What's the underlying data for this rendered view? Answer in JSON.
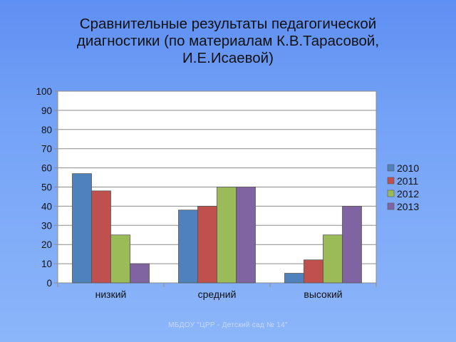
{
  "slide": {
    "title_lines": [
      "Сравнительные результаты педагогической",
      "диагностики (по материалам К.В.Тарасовой,",
      "И.Е.Исаевой)"
    ],
    "footer": "МБДОУ \"ЦРР - Детский сад № 14\""
  },
  "chart_data": {
    "type": "bar",
    "categories": [
      "низкий",
      "средний",
      "высокий"
    ],
    "series": [
      {
        "name": "2010",
        "color": "#4f81bd",
        "values": [
          57,
          38,
          5
        ]
      },
      {
        "name": "2011",
        "color": "#c0504d",
        "values": [
          48,
          40,
          12
        ]
      },
      {
        "name": "2012",
        "color": "#9bbb59",
        "values": [
          25,
          50,
          25
        ]
      },
      {
        "name": "2013",
        "color": "#8064a2",
        "values": [
          10,
          50,
          40
        ]
      }
    ],
    "ylim": [
      0,
      100
    ],
    "yticks": [
      0,
      10,
      20,
      30,
      40,
      50,
      60,
      70,
      80,
      90,
      100
    ],
    "grid": true,
    "legend_position": "right",
    "plot_background": "#ffffff"
  }
}
